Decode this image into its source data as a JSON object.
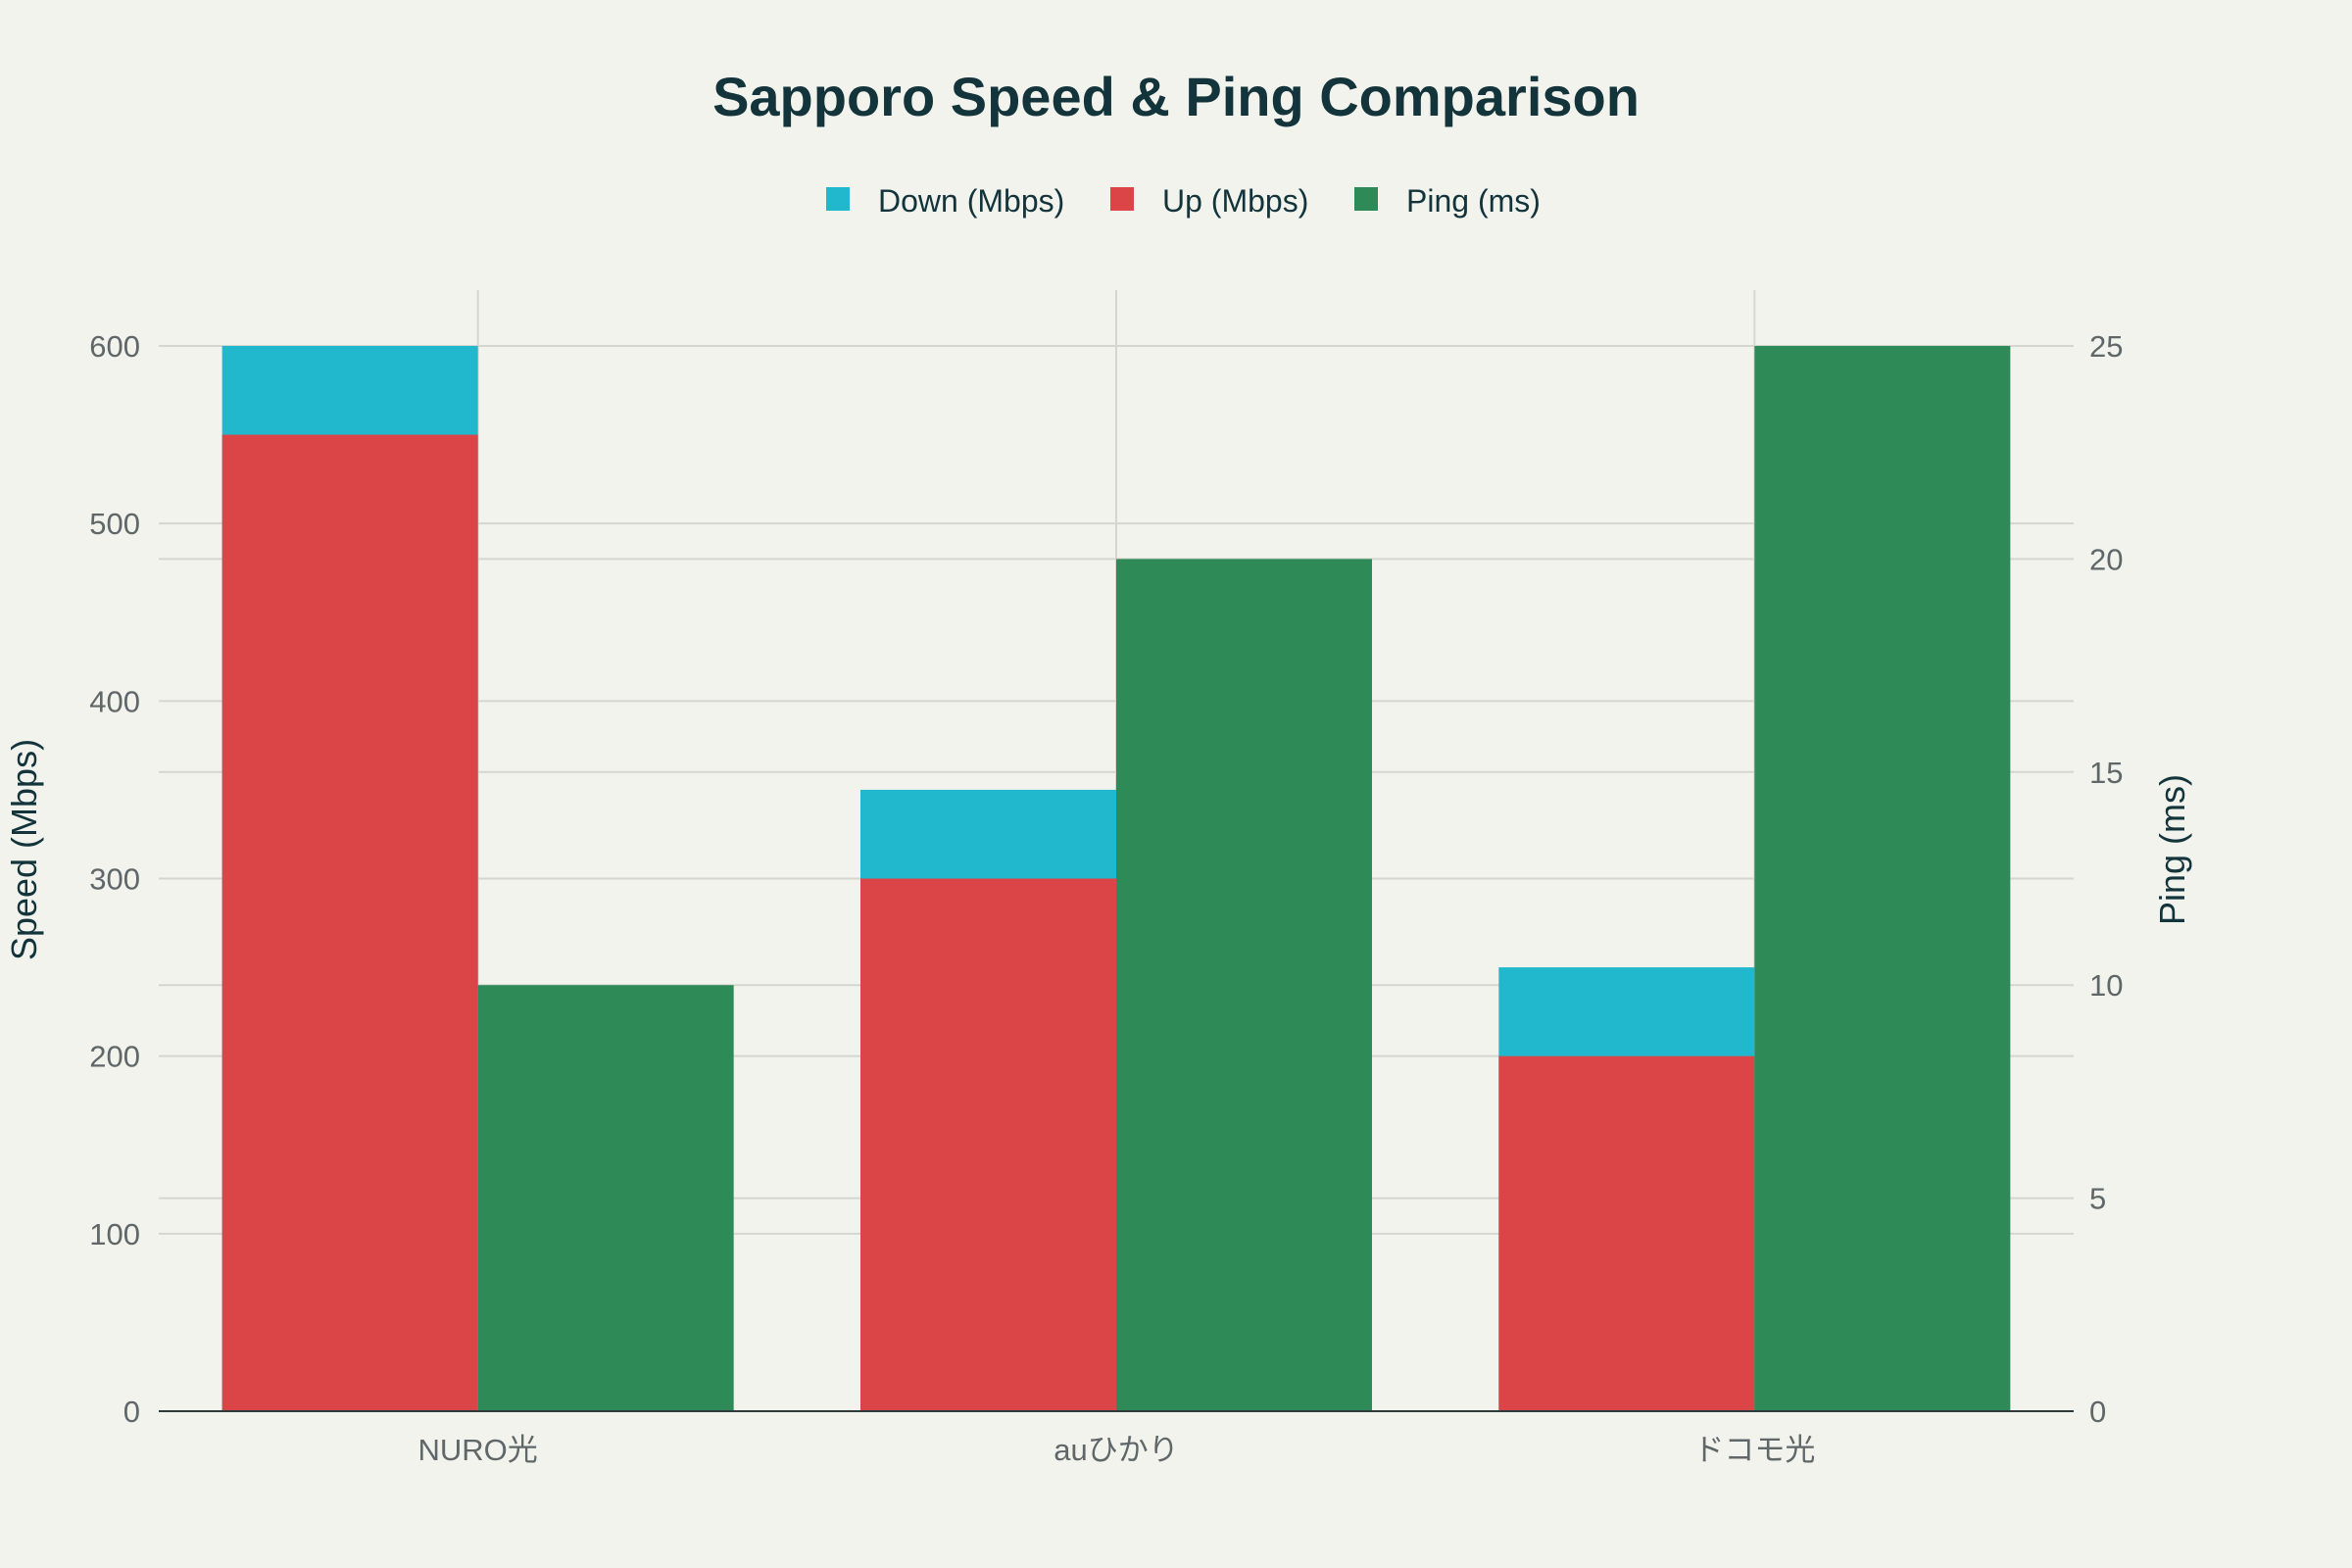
{
  "chart_data": {
    "type": "bar",
    "title": "Sapporo Speed & Ping Comparison",
    "categories": [
      "NURO光",
      "auひかり",
      "ドコモ光"
    ],
    "series": [
      {
        "name": "Down (Mbps)",
        "axis": "left",
        "values": [
          600,
          350,
          250
        ],
        "color": "#21b8cd",
        "stack": "speed"
      },
      {
        "name": "Up (Mbps)",
        "axis": "left",
        "values": [
          550,
          300,
          200
        ],
        "color": "#db4547",
        "stack": "speed"
      },
      {
        "name": "Ping (ms)",
        "axis": "right",
        "values": [
          10,
          20,
          25
        ],
        "color": "#2e8b57",
        "stack": "ping"
      }
    ],
    "ylabel": "Speed (Mbps)",
    "y2label": "Ping (ms)",
    "ylim": [
      0,
      600
    ],
    "y2lim": [
      0,
      25
    ],
    "yticks": [
      "0",
      "100",
      "200",
      "300",
      "400",
      "500",
      "600"
    ],
    "y2ticks": [
      "0",
      "5",
      "10",
      "15",
      "20",
      "25"
    ],
    "legend": "top-center",
    "grid": true
  }
}
